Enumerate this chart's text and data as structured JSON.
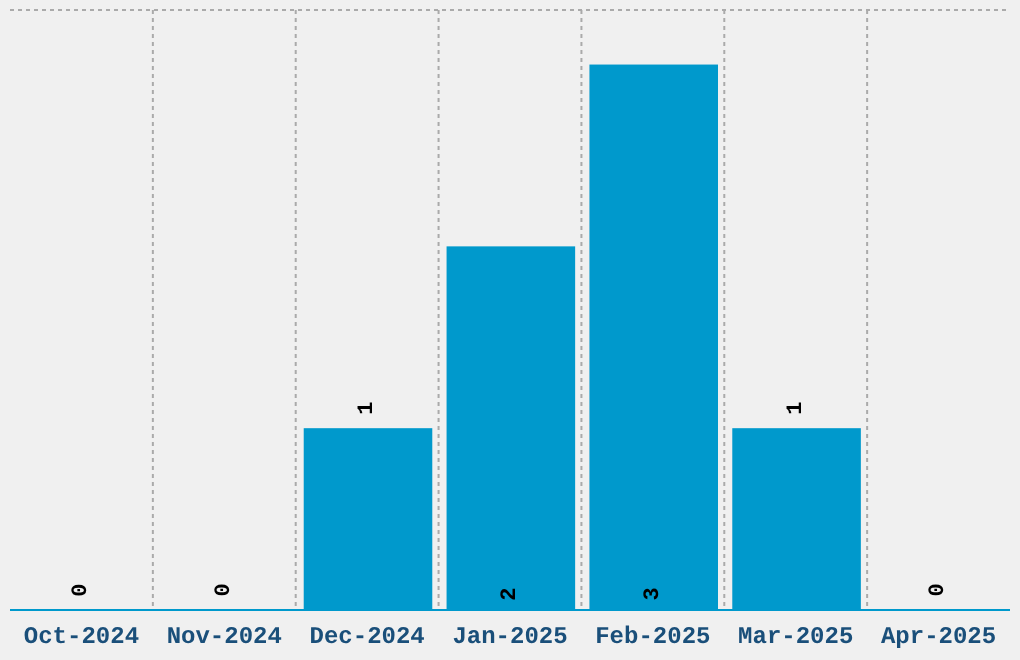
{
  "chart_data": {
    "type": "bar",
    "categories": [
      "Oct-2024",
      "Nov-2024",
      "Dec-2024",
      "Jan-2025",
      "Feb-2025",
      "Mar-2025",
      "Apr-2025"
    ],
    "values": [
      0,
      0,
      1,
      2,
      3,
      1,
      0
    ],
    "color": "#0099cc",
    "data_labels": true,
    "grid": true,
    "tick_labels": "x",
    "ylim": [
      0,
      3.3
    ]
  }
}
